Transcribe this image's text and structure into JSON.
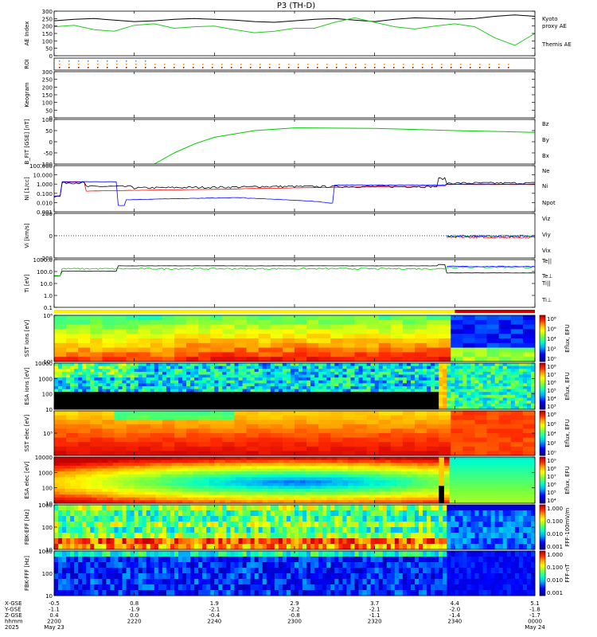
{
  "title": "P3 (TH-D)",
  "colors": {
    "thm_ae": "#000000",
    "kyoto_ae": "#22cc22",
    "red": "#ff0000",
    "green": "#00cc00",
    "blue": "#0000ff",
    "black": "#000000"
  },
  "chart_data": [
    {
      "type": "line",
      "id": "ae",
      "ylabel": "AE Index",
      "ylim": [
        0,
        300
      ],
      "yticks": [
        "300",
        "250",
        "200",
        "150",
        "100",
        "50",
        "0"
      ],
      "legend": [
        {
          "name": "Kyoto",
          "color": "#22cc22"
        },
        {
          "name": "proxy AE",
          "color": "#22cc22"
        },
        {
          "name": "Themis AE",
          "color": "#000000"
        }
      ],
      "x_minutes": [
        0,
        5,
        10,
        15,
        20,
        25,
        30,
        35,
        40,
        45,
        50,
        55,
        60,
        65,
        70,
        75,
        80,
        85,
        90,
        95,
        100,
        105,
        110,
        115,
        120
      ],
      "series": [
        {
          "name": "Themis AE",
          "color": "#000000",
          "values": [
            235,
            245,
            250,
            240,
            230,
            235,
            245,
            250,
            245,
            240,
            230,
            225,
            235,
            245,
            250,
            240,
            230,
            245,
            255,
            250,
            245,
            250,
            265,
            275,
            265
          ]
        },
        {
          "name": "Kyoto proxy AE",
          "color": "#22cc22",
          "values": [
            195,
            205,
            175,
            165,
            205,
            215,
            185,
            195,
            200,
            175,
            155,
            165,
            185,
            185,
            225,
            255,
            225,
            195,
            180,
            200,
            215,
            195,
            120,
            70,
            150
          ]
        }
      ]
    },
    {
      "type": "heatmap",
      "id": "roi",
      "ylabel": "ROI"
    },
    {
      "type": "line",
      "id": "keogram",
      "ylabel": "Keogram",
      "yticks": [
        "300",
        "250",
        "200",
        "150",
        "100",
        "50",
        "0"
      ]
    },
    {
      "type": "line",
      "id": "bfit",
      "ylabel": "B_FIT [GSE] [nT]",
      "ylim": [
        -100,
        100
      ],
      "yticks": [
        "100",
        "50",
        "0",
        "-50",
        "-100"
      ],
      "legend": [
        {
          "name": "Bz",
          "color": "#ff0000"
        },
        {
          "name": "By",
          "color": "#00cc00"
        },
        {
          "name": "Bx",
          "color": "#0000ff"
        }
      ],
      "series": [
        {
          "name": "By",
          "color": "#00cc00",
          "x_minutes": [
            25,
            30,
            35,
            40,
            50,
            60,
            80,
            100,
            120
          ],
          "values": [
            -100,
            -50,
            -10,
            20,
            50,
            62,
            60,
            50,
            42
          ]
        }
      ]
    },
    {
      "type": "line",
      "id": "density",
      "ylabel": "Ni [1/cc]",
      "ylim": [
        0.001,
        100
      ],
      "log": true,
      "yticks": [
        "100.000",
        "10.000",
        "1.000",
        "0.100",
        "0.010",
        "0.001"
      ],
      "legend": [
        {
          "name": "Ne",
          "color": "#ff0000"
        },
        {
          "name": "Ni",
          "color": "#000000"
        },
        {
          "name": "Npot",
          "color": "#0000ff"
        }
      ]
    },
    {
      "type": "line",
      "id": "velocity",
      "ylabel": "Vi [km/s]",
      "ylim": [
        -400,
        400
      ],
      "yticks": [
        "200",
        "0",
        "-200"
      ],
      "legend": [
        {
          "name": "Viz",
          "color": "#ff0000"
        },
        {
          "name": "Viy",
          "color": "#00cc00"
        },
        {
          "name": "Vix",
          "color": "#0000ff"
        }
      ]
    },
    {
      "type": "line",
      "id": "temp",
      "ylabel": "Ti [eV]",
      "ylim": [
        0.1,
        10000
      ],
      "log": true,
      "yticks": [
        "1000.0",
        "100.0",
        "10.0",
        "1.0",
        "0.1"
      ],
      "legend": [
        {
          "name": "Te||",
          "color": "#000000"
        },
        {
          "name": "Te⊥",
          "color": "#ff0000"
        },
        {
          "name": "Ti||",
          "color": "#00cc00"
        },
        {
          "name": "Ti⊥",
          "color": "#0000ff"
        }
      ]
    },
    {
      "type": "heatmap",
      "id": "sst_ion",
      "ylabel": "SST ions [eV]",
      "yticks": [
        "10⁶",
        "10⁵"
      ],
      "cbar_label": "Eflux, EFU",
      "cbar_ticks": [
        "10⁸",
        "10⁶",
        "10⁴",
        "10²",
        "10⁰"
      ]
    },
    {
      "type": "heatmap",
      "id": "esa_ion",
      "ylabel": "ESA ions [eV]",
      "yticks": [
        "10000",
        "1000",
        "100",
        "10"
      ],
      "cbar_label": "Eflux, EFU",
      "cbar_ticks": [
        "10⁸",
        "10⁷",
        "10⁶",
        "10⁵",
        "10⁴",
        "10³"
      ]
    },
    {
      "type": "heatmap",
      "id": "sst_elec",
      "ylabel": "SST elec [eV]",
      "yticks": [
        "10⁵"
      ],
      "cbar_label": "Eflux, EFU",
      "cbar_ticks": [
        "10⁸",
        "10⁶",
        "10⁴",
        "10²",
        "10⁰"
      ]
    },
    {
      "type": "heatmap",
      "id": "esa_elec",
      "ylabel": "ESA elec [eV]",
      "yticks": [
        "10000",
        "1000",
        "100",
        "10"
      ],
      "cbar_label": "Eflux, EFU",
      "cbar_ticks": [
        "10⁹",
        "10⁸",
        "10⁷",
        "10⁶",
        "10⁵",
        "10⁴"
      ]
    },
    {
      "type": "heatmap",
      "id": "fbk_e",
      "ylabel": "FBK-EFF [Hz]",
      "yticks": [
        "1000",
        "100",
        "10"
      ],
      "cbar_label": "FFF-100mV/m",
      "cbar_ticks": [
        "1.000",
        "0.100",
        "0.010",
        "0.001"
      ]
    },
    {
      "type": "heatmap",
      "id": "fbk_b",
      "ylabel": "FBK-FFF [Hz]",
      "yticks": [
        "1000",
        "100",
        "10"
      ],
      "cbar_label": "FFF-nT",
      "cbar_ticks": [
        "1.000",
        "0.100",
        "0.010",
        "0.001"
      ]
    }
  ],
  "xaxis": {
    "row_labels": [
      "X-GSE",
      "Y-GSE",
      "Z-GSE",
      "hhmm",
      "2025"
    ],
    "ticks": [
      {
        "x": "-0.5",
        "y": "-1.1",
        "z": "0.4",
        "hhmm": "2200",
        "date": "May 23"
      },
      {
        "x": "0.8",
        "y": "-1.9",
        "z": "0.0",
        "hhmm": "2220",
        "date": ""
      },
      {
        "x": "1.9",
        "y": "-2.1",
        "z": "-0.4",
        "hhmm": "2240",
        "date": ""
      },
      {
        "x": "2.9",
        "y": "-2.2",
        "z": "-0.8",
        "hhmm": "2300",
        "date": ""
      },
      {
        "x": "3.7",
        "y": "-2.1",
        "z": "-1.1",
        "hhmm": "2320",
        "date": ""
      },
      {
        "x": "4.4",
        "y": "-2.0",
        "z": "-1.4",
        "hhmm": "2340",
        "date": ""
      },
      {
        "x": "5.1",
        "y": "-1.8",
        "z": "-1.7",
        "hhmm": "0000",
        "date": "May 24"
      }
    ]
  }
}
